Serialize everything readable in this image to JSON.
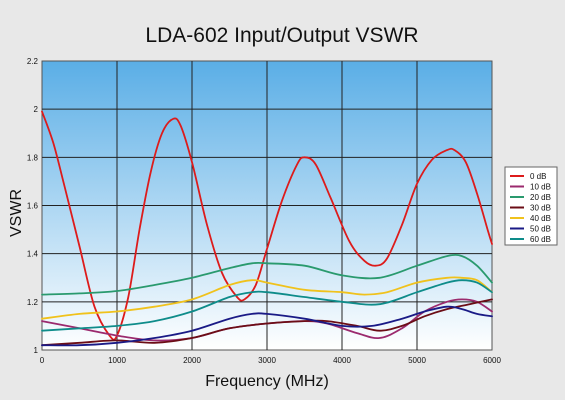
{
  "chart_data": {
    "type": "line",
    "title": "LDA-602 Input/Output VSWR",
    "xlabel": "Frequency (MHz)",
    "ylabel": "VSWR",
    "xlim": [
      0,
      6000
    ],
    "ylim": [
      1,
      2.2
    ],
    "xticks": [
      0,
      1000,
      2000,
      3000,
      4000,
      5000,
      6000
    ],
    "yticks": [
      1,
      1.2,
      1.4,
      1.6,
      1.8,
      2,
      2.2
    ],
    "ytick_labels": [
      "1",
      "1.2",
      "1.4",
      "1.6",
      "1.8",
      "2",
      "2.2"
    ],
    "grid": true,
    "legend_position": "right",
    "plot_background": "light-blue gradient",
    "series": [
      {
        "name": "0 dB",
        "color": "#dd1b1b",
        "points": [
          [
            0,
            1.99
          ],
          [
            150,
            1.86
          ],
          [
            300,
            1.68
          ],
          [
            500,
            1.43
          ],
          [
            700,
            1.18
          ],
          [
            900,
            1.06
          ],
          [
            1000,
            1.06
          ],
          [
            1150,
            1.22
          ],
          [
            1300,
            1.5
          ],
          [
            1450,
            1.74
          ],
          [
            1600,
            1.9
          ],
          [
            1750,
            1.96
          ],
          [
            1850,
            1.93
          ],
          [
            2000,
            1.78
          ],
          [
            2200,
            1.52
          ],
          [
            2400,
            1.32
          ],
          [
            2600,
            1.22
          ],
          [
            2700,
            1.21
          ],
          [
            2850,
            1.27
          ],
          [
            3000,
            1.42
          ],
          [
            3200,
            1.62
          ],
          [
            3400,
            1.77
          ],
          [
            3500,
            1.8
          ],
          [
            3650,
            1.77
          ],
          [
            3850,
            1.63
          ],
          [
            4100,
            1.45
          ],
          [
            4300,
            1.37
          ],
          [
            4450,
            1.35
          ],
          [
            4600,
            1.38
          ],
          [
            4800,
            1.52
          ],
          [
            5000,
            1.69
          ],
          [
            5200,
            1.79
          ],
          [
            5400,
            1.83
          ],
          [
            5500,
            1.83
          ],
          [
            5650,
            1.78
          ],
          [
            5800,
            1.65
          ],
          [
            5950,
            1.49
          ],
          [
            6000,
            1.44
          ]
        ]
      },
      {
        "name": "10 dB",
        "color": "#9b2a6e",
        "points": [
          [
            0,
            1.12
          ],
          [
            500,
            1.09
          ],
          [
            1000,
            1.06
          ],
          [
            1500,
            1.04
          ],
          [
            2000,
            1.05
          ],
          [
            2500,
            1.09
          ],
          [
            3000,
            1.11
          ],
          [
            3500,
            1.12
          ],
          [
            3800,
            1.11
          ],
          [
            4200,
            1.07
          ],
          [
            4500,
            1.05
          ],
          [
            4800,
            1.09
          ],
          [
            5100,
            1.16
          ],
          [
            5400,
            1.2
          ],
          [
            5600,
            1.21
          ],
          [
            5800,
            1.2
          ],
          [
            6000,
            1.16
          ]
        ]
      },
      {
        "name": "20 dB",
        "color": "#2a9a6e",
        "points": [
          [
            0,
            1.23
          ],
          [
            500,
            1.235
          ],
          [
            1000,
            1.245
          ],
          [
            1500,
            1.27
          ],
          [
            2000,
            1.3
          ],
          [
            2500,
            1.34
          ],
          [
            2800,
            1.36
          ],
          [
            3000,
            1.36
          ],
          [
            3500,
            1.35
          ],
          [
            4000,
            1.31
          ],
          [
            4500,
            1.3
          ],
          [
            5000,
            1.35
          ],
          [
            5400,
            1.39
          ],
          [
            5600,
            1.39
          ],
          [
            5800,
            1.35
          ],
          [
            6000,
            1.28
          ]
        ]
      },
      {
        "name": "30 dB",
        "color": "#6b0d16",
        "points": [
          [
            0,
            1.02
          ],
          [
            500,
            1.03
          ],
          [
            1000,
            1.04
          ],
          [
            1500,
            1.03
          ],
          [
            2000,
            1.05
          ],
          [
            2500,
            1.09
          ],
          [
            3000,
            1.11
          ],
          [
            3500,
            1.12
          ],
          [
            3800,
            1.12
          ],
          [
            4200,
            1.1
          ],
          [
            4500,
            1.08
          ],
          [
            4800,
            1.1
          ],
          [
            5100,
            1.14
          ],
          [
            5400,
            1.17
          ],
          [
            5700,
            1.19
          ],
          [
            6000,
            1.21
          ]
        ]
      },
      {
        "name": "40 dB",
        "color": "#f0c21c",
        "points": [
          [
            0,
            1.13
          ],
          [
            500,
            1.15
          ],
          [
            1000,
            1.16
          ],
          [
            1500,
            1.18
          ],
          [
            2000,
            1.21
          ],
          [
            2500,
            1.27
          ],
          [
            2800,
            1.29
          ],
          [
            3000,
            1.28
          ],
          [
            3500,
            1.25
          ],
          [
            4000,
            1.24
          ],
          [
            4300,
            1.23
          ],
          [
            4600,
            1.24
          ],
          [
            5000,
            1.28
          ],
          [
            5400,
            1.3
          ],
          [
            5600,
            1.3
          ],
          [
            5800,
            1.29
          ],
          [
            6000,
            1.24
          ]
        ]
      },
      {
        "name": "50 dB",
        "color": "#1a1a86",
        "points": [
          [
            0,
            1.02
          ],
          [
            500,
            1.02
          ],
          [
            1000,
            1.03
          ],
          [
            1500,
            1.05
          ],
          [
            2000,
            1.08
          ],
          [
            2500,
            1.13
          ],
          [
            2800,
            1.15
          ],
          [
            3000,
            1.15
          ],
          [
            3500,
            1.13
          ],
          [
            4000,
            1.1
          ],
          [
            4400,
            1.1
          ],
          [
            4800,
            1.13
          ],
          [
            5100,
            1.16
          ],
          [
            5400,
            1.18
          ],
          [
            5600,
            1.17
          ],
          [
            5800,
            1.15
          ],
          [
            6000,
            1.14
          ]
        ]
      },
      {
        "name": "60 dB",
        "color": "#0e8c8a",
        "points": [
          [
            0,
            1.08
          ],
          [
            500,
            1.09
          ],
          [
            1000,
            1.1
          ],
          [
            1500,
            1.12
          ],
          [
            2000,
            1.16
          ],
          [
            2500,
            1.22
          ],
          [
            2800,
            1.24
          ],
          [
            3000,
            1.24
          ],
          [
            3500,
            1.22
          ],
          [
            4000,
            1.2
          ],
          [
            4500,
            1.19
          ],
          [
            5000,
            1.24
          ],
          [
            5400,
            1.28
          ],
          [
            5600,
            1.29
          ],
          [
            5800,
            1.28
          ],
          [
            6000,
            1.24
          ]
        ]
      }
    ]
  }
}
